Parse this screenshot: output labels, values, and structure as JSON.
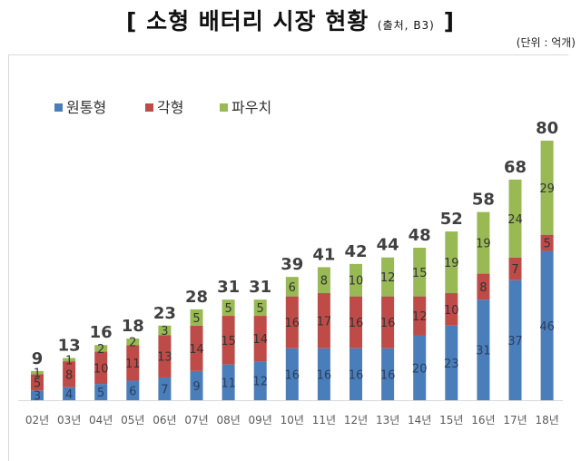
{
  "title": "[ 소형 배터리 시장 현황",
  "title_source": "(출처, B3)",
  "title_close": "]",
  "unit_note": "(단위 : 억개)",
  "chart_data": {
    "type": "bar",
    "stacked": true,
    "categories": [
      "02년",
      "03년",
      "04년",
      "05년",
      "06년",
      "07년",
      "08년",
      "09년",
      "10년",
      "11년",
      "12년",
      "13년",
      "14년",
      "15년",
      "16년",
      "17년",
      "18년"
    ],
    "series": [
      {
        "name": "원통형",
        "color": "#4a7ebb",
        "values": [
          3,
          4,
          5,
          6,
          7,
          9,
          11,
          12,
          16,
          16,
          16,
          16,
          20,
          23,
          31,
          37,
          46
        ]
      },
      {
        "name": "각형",
        "color": "#be4b48",
        "values": [
          5,
          8,
          10,
          11,
          13,
          14,
          15,
          14,
          16,
          17,
          16,
          16,
          12,
          10,
          8,
          7,
          5
        ]
      },
      {
        "name": "파우치",
        "color": "#98b954",
        "values": [
          1,
          1,
          2,
          2,
          3,
          5,
          5,
          5,
          6,
          8,
          10,
          12,
          15,
          19,
          19,
          24,
          29
        ]
      }
    ],
    "totals": [
      9,
      13,
      16,
      18,
      23,
      28,
      31,
      31,
      39,
      41,
      42,
      44,
      48,
      52,
      58,
      68,
      80
    ],
    "legend_position": "top-left",
    "grid": false
  }
}
